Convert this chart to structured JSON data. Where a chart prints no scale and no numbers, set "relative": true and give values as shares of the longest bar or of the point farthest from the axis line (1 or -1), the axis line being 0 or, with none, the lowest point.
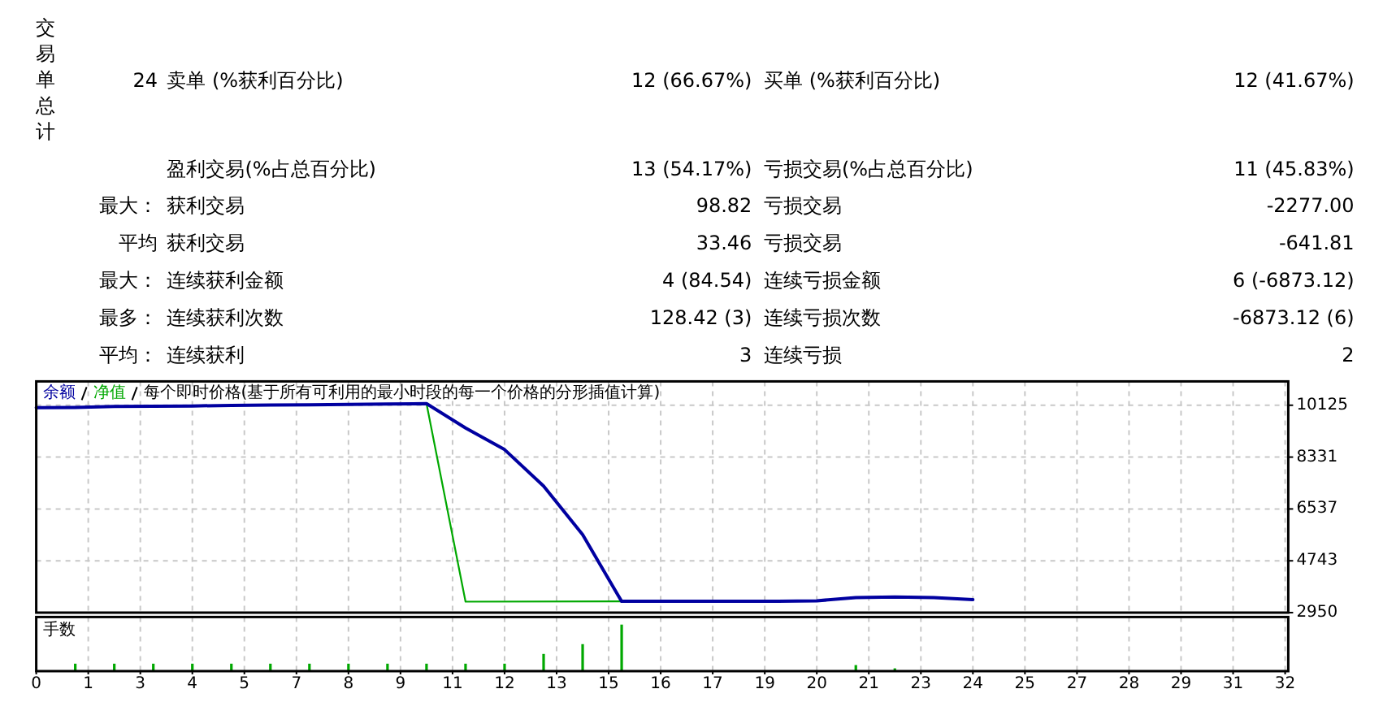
{
  "chart_data": [
    {
      "type": "other",
      "annotations": [
        "交易单总计",
        "24",
        "卖单 (%获利百分比)",
        "12 (66.67%)",
        "买单 (%获利百分比)",
        "12 (41.67%)",
        "盈利交易(%占总百分比)",
        "13 (54.17%)",
        "亏损交易(%占总百分比)",
        "11 (45.83%)",
        "最大：",
        "获利交易",
        "98.82",
        "亏损交易",
        "-2277.00",
        "平均",
        "获利交易",
        "33.46",
        "亏损交易",
        "-641.81",
        "最大：",
        "连续获利金额",
        "4 (84.54)",
        "连续亏损金额",
        "6 (-6873.12)",
        "最多：",
        "连续获利次数",
        "128.42 (3)",
        "连续亏损次数",
        "-6873.12 (6)",
        "平均：",
        "连续获利",
        "3",
        "连续亏损",
        "2"
      ]
    },
    {
      "type": "line",
      "title": "每个即时价格(基于所有可利用的最小时段的每一个价格的分形插值计算)",
      "xlim": [
        0,
        32.08
      ],
      "xticks": [
        {
          "value": 0,
          "label": null
        },
        {
          "value": 1.333,
          "label": null
        },
        {
          "value": 2.667,
          "label": null
        },
        {
          "value": 4,
          "label": null
        },
        {
          "value": 5.333,
          "label": null
        },
        {
          "value": 6.667,
          "label": null
        },
        {
          "value": 8,
          "label": null
        },
        {
          "value": 9.333,
          "label": null
        },
        {
          "value": 10.667,
          "label": null
        },
        {
          "value": 12,
          "label": null
        },
        {
          "value": 13.333,
          "label": null
        },
        {
          "value": 14.667,
          "label": null
        },
        {
          "value": 16,
          "label": null
        },
        {
          "value": 17.333,
          "label": null
        },
        {
          "value": 18.667,
          "label": null
        },
        {
          "value": 20,
          "label": null
        },
        {
          "value": 21.333,
          "label": null
        },
        {
          "value": 22.667,
          "label": null
        },
        {
          "value": 24,
          "label": null
        },
        {
          "value": 25.333,
          "label": null
        },
        {
          "value": 26.667,
          "label": null
        },
        {
          "value": 28,
          "label": null
        },
        {
          "value": 29.333,
          "label": null
        },
        {
          "value": 30.667,
          "label": null
        },
        {
          "value": 32,
          "label": null
        }
      ],
      "ylim": [
        2950,
        10950
      ],
      "yticks": [
        2950,
        4743,
        6537,
        8331,
        10125
      ],
      "grid": true,
      "legend": "top left",
      "tick_labels": "y",
      "series": [
        {
          "name": "余额",
          "color": "#0000a0",
          "x": [
            0,
            1,
            2,
            3,
            4,
            5,
            6,
            7,
            8,
            9,
            10,
            11,
            12,
            13,
            14,
            15,
            16,
            17,
            18,
            19,
            20,
            21,
            22,
            23,
            24
          ],
          "values": [
            10040,
            10050,
            10080,
            10090,
            10100,
            10120,
            10130,
            10140,
            10150,
            10170,
            10180,
            9340,
            8590,
            7330,
            5650,
            3340,
            3340,
            3340,
            3340,
            3340,
            3360,
            3470,
            3490,
            3470,
            3400
          ]
        },
        {
          "name": "净值",
          "color": "#00a800",
          "x": [
            10,
            11,
            15
          ],
          "values": [
            10180,
            3330,
            3340
          ]
        }
      ]
    },
    {
      "type": "bar",
      "title": "手数",
      "relative": true,
      "color": "#00a800",
      "x": [
        1,
        2,
        3,
        4,
        5,
        6,
        7,
        8,
        9,
        10,
        11,
        12,
        13,
        14,
        15,
        21,
        22
      ],
      "values": [
        0.16,
        0.16,
        0.16,
        0.16,
        0.16,
        0.16,
        0.16,
        0.16,
        0.16,
        0.16,
        0.16,
        0.16,
        0.37,
        0.58,
        1,
        0.13,
        0.06
      ],
      "xlim": [
        0,
        32.08
      ],
      "xticks": [
        0,
        {
          "value": 1.333,
          "label": "1"
        },
        {
          "value": 2.667,
          "label": "3"
        },
        4,
        {
          "value": 5.333,
          "label": "5"
        },
        {
          "value": 6.667,
          "label": "7"
        },
        8,
        {
          "value": 9.333,
          "label": "9"
        },
        {
          "value": 10.667,
          "label": "11"
        },
        12,
        {
          "value": 13.333,
          "label": "13"
        },
        {
          "value": 14.667,
          "label": "15"
        },
        16,
        {
          "value": 17.333,
          "label": "17"
        },
        {
          "value": 18.667,
          "label": "19"
        },
        20,
        {
          "value": 21.333,
          "label": "21"
        },
        {
          "value": 22.667,
          "label": "23"
        },
        24,
        {
          "value": 25.333,
          "label": "25"
        },
        {
          "value": 26.667,
          "label": "27"
        },
        28,
        {
          "value": 29.333,
          "label": "29"
        },
        {
          "value": 30.667,
          "label": "31"
        },
        32
      ],
      "grid": "x",
      "tick_labels": "x"
    }
  ]
}
